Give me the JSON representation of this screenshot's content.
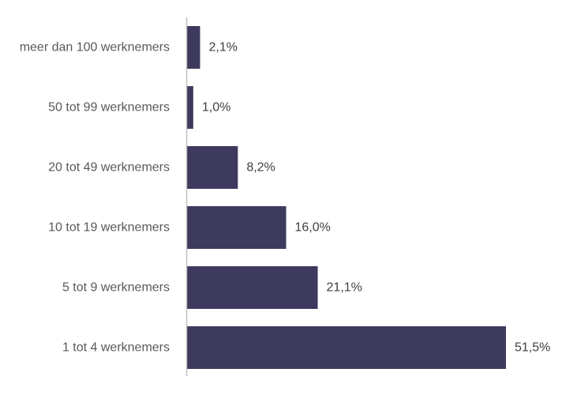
{
  "chart_data": {
    "type": "bar",
    "orientation": "horizontal",
    "title": "",
    "xlabel": "",
    "ylabel": "",
    "categories": [
      "meer dan 100 werknemers",
      "50 tot 99 werknemers",
      "20 tot 49 werknemers",
      "10 tot 19 werknemers",
      "5 tot 9 werknemers",
      "1 tot 4 werknemers"
    ],
    "values": [
      2.1,
      1.0,
      8.2,
      16.0,
      21.1,
      51.5
    ],
    "value_labels": [
      "2,1%",
      "1,0%",
      "8,2%",
      "16,0%",
      "21,1%",
      "51,5%"
    ],
    "xlim": [
      0,
      51.5
    ],
    "grid": false,
    "legend": "none",
    "bar_color": "#3d3a5e",
    "axis_color": "#bfbfbf",
    "category_label_color": "#595959",
    "value_label_color": "#404040"
  }
}
